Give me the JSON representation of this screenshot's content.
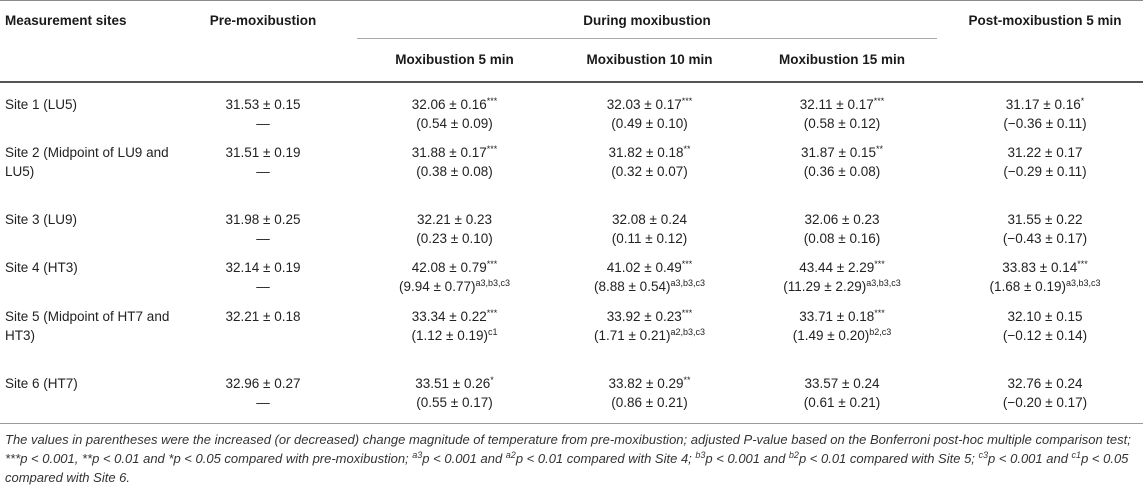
{
  "headers": {
    "site": "Measurement sites",
    "pre": "Pre-moxibustion",
    "during": "During moxibustion",
    "m5": "Moxibustion 5 min",
    "m10": "Moxibustion 10 min",
    "m15": "Moxibustion 15 min",
    "post": "Post-moxibustion 5 min"
  },
  "rows": [
    {
      "site": "Site 1 (LU5)",
      "pre": {
        "v": "31.53 ± 0.15",
        "d": "—"
      },
      "m5": {
        "v": "32.06 ± 0.16",
        "vs": "***",
        "d": "(0.54 ± 0.09)",
        "ds": ""
      },
      "m10": {
        "v": "32.03 ± 0.17",
        "vs": "***",
        "d": "(0.49 ± 0.10)",
        "ds": ""
      },
      "m15": {
        "v": "32.11 ± 0.17",
        "vs": "***",
        "d": "(0.58 ± 0.12)",
        "ds": ""
      },
      "post": {
        "v": "31.17 ± 0.16",
        "vs": "*",
        "d": "(−0.36 ± 0.11)",
        "ds": ""
      }
    },
    {
      "site": "Site 2 (Midpoint of LU9 and LU5)",
      "pre": {
        "v": "31.51 ± 0.19",
        "d": "—"
      },
      "m5": {
        "v": "31.88 ± 0.17",
        "vs": "***",
        "d": "(0.38 ± 0.08)",
        "ds": ""
      },
      "m10": {
        "v": "31.82 ± 0.18",
        "vs": "**",
        "d": "(0.32 ± 0.07)",
        "ds": ""
      },
      "m15": {
        "v": "31.87 ± 0.15",
        "vs": "**",
        "d": "(0.36 ± 0.08)",
        "ds": ""
      },
      "post": {
        "v": "31.22 ± 0.17",
        "vs": "",
        "d": "(−0.29 ± 0.11)",
        "ds": ""
      }
    },
    {
      "site": "Site 3 (LU9)",
      "pre": {
        "v": "31.98 ± 0.25",
        "d": "—"
      },
      "m5": {
        "v": "32.21 ± 0.23",
        "vs": "",
        "d": "(0.23 ± 0.10)",
        "ds": ""
      },
      "m10": {
        "v": "32.08 ± 0.24",
        "vs": "",
        "d": "(0.11 ± 0.12)",
        "ds": ""
      },
      "m15": {
        "v": "32.06 ± 0.23",
        "vs": "",
        "d": "(0.08 ± 0.16)",
        "ds": ""
      },
      "post": {
        "v": "31.55 ± 0.22",
        "vs": "",
        "d": "(−0.43 ± 0.17)",
        "ds": ""
      }
    },
    {
      "site": "Site 4 (HT3)",
      "pre": {
        "v": "32.14 ± 0.19",
        "d": "—"
      },
      "m5": {
        "v": "42.08 ± 0.79",
        "vs": "***",
        "d": "(9.94 ± 0.77)",
        "ds": "a3,b3,c3"
      },
      "m10": {
        "v": "41.02 ± 0.49",
        "vs": "***",
        "d": "(8.88 ± 0.54)",
        "ds": "a3,b3,c3"
      },
      "m15": {
        "v": "43.44 ± 2.29",
        "vs": "***",
        "d": "(11.29 ± 2.29)",
        "ds": "a3,b3,c3"
      },
      "post": {
        "v": "33.83 ± 0.14",
        "vs": "***",
        "d": "(1.68 ± 0.19)",
        "ds": "a3,b3,c3"
      }
    },
    {
      "site": "Site 5 (Midpoint of HT7 and HT3)",
      "pre": {
        "v": "32.21 ± 0.18",
        "d": ""
      },
      "m5": {
        "v": "33.34 ± 0.22",
        "vs": "***",
        "d": "(1.12 ± 0.19)",
        "ds": "c1"
      },
      "m10": {
        "v": "33.92 ± 0.23",
        "vs": "***",
        "d": "(1.71 ± 0.21)",
        "ds": "a2,b3,c3"
      },
      "m15": {
        "v": "33.71 ± 0.18",
        "vs": "***",
        "d": "(1.49 ± 0.20)",
        "ds": "b2,c3"
      },
      "post": {
        "v": "32.10 ± 0.15",
        "vs": "",
        "d": "(−0.12 ± 0.14)",
        "ds": ""
      }
    },
    {
      "site": "Site 6 (HT7)",
      "pre": {
        "v": "32.96 ± 0.27",
        "d": "—"
      },
      "m5": {
        "v": "33.51 ± 0.26",
        "vs": "*",
        "d": "(0.55 ± 0.17)",
        "ds": ""
      },
      "m10": {
        "v": "33.82 ± 0.29",
        "vs": "**",
        "d": "(0.86 ± 0.21)",
        "ds": ""
      },
      "m15": {
        "v": "33.57 ± 0.24",
        "vs": "",
        "d": "(0.61 ± 0.21)",
        "ds": ""
      },
      "post": {
        "v": "32.76 ± 0.24",
        "vs": "",
        "d": "(−0.20 ± 0.17)",
        "ds": ""
      }
    }
  ],
  "footnote": {
    "p1": "The values in parentheses were the increased (or decreased) change magnitude of temperature from pre-moxibustion; adjusted ",
    "P": "P",
    "p2": "-value based on the Bonferroni post-hoc multiple comparison test; ***",
    "p_a": "p",
    "p3": " < 0.001, **",
    "p_b": "p",
    "p4": " < 0.01 and *",
    "p_c": "p",
    "p5": " < 0.05 compared with pre-moxibustion; ",
    "s_a3": "a3",
    "p_d": "p",
    "p6": " < 0.001 and ",
    "s_a2": "a2",
    "p_e": "p",
    "p7": " < 0.01 compared with Site 4; ",
    "s_b3": "b3",
    "p_f": "p",
    "p8": " < 0.001 and ",
    "s_b2": "b2",
    "p_g": "p",
    "p9": " < 0.01 compared with Site 5; ",
    "s_c3": "c3",
    "p_h": "p",
    "p10": " < 0.001 and ",
    "s_c1": "c1",
    "p_i": "p",
    "p11": " < 0.05 compared with Site 6."
  }
}
